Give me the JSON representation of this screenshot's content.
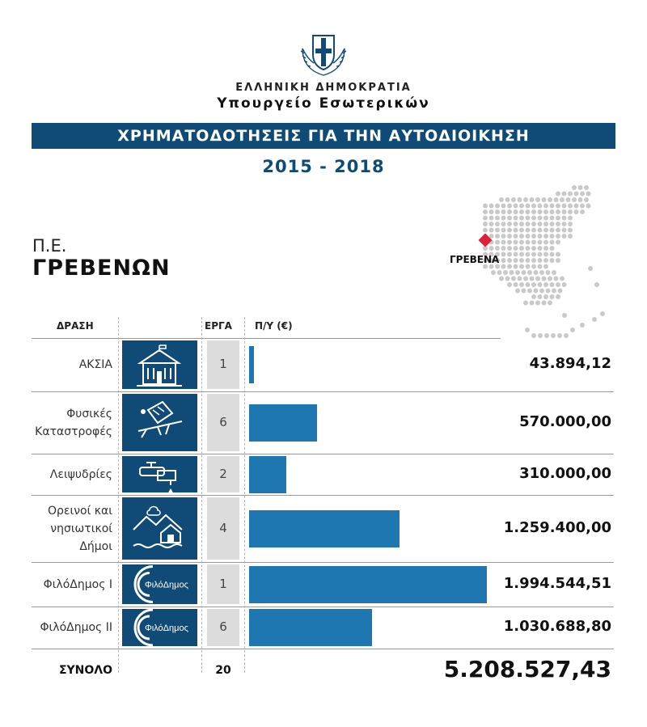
{
  "header": {
    "republic": "ΕΛΛΗΝΙΚΗ ΔΗΜΟΚΡΑΤΙΑ",
    "ministry": "Υπουργείο Εσωτερικών",
    "banner": "ΧΡΗΜΑΤΟΔΟΤΗΣΕΙΣ ΓΙΑ ΤΗΝ ΑΥΤΟΔΙΟΙΚΗΣΗ",
    "years": "2015 - 2018"
  },
  "region": {
    "prefix": "Π.Ε.",
    "name": "ΓΡΕΒΕΝΩΝ",
    "map_label": "ΓΡΕΒΕΝΑ"
  },
  "columns": {
    "action": "ΔΡΑΣΗ",
    "projects": "ΕΡΓΑ",
    "budget": "Π/Υ (€)"
  },
  "colors": {
    "primary": "#0f4b76",
    "bar": "#1e77b0",
    "project_box": "#dcdcdc",
    "marker": "#e0203a"
  },
  "icons": [
    "school-icon",
    "earthquake-house-icon",
    "faucet-icon",
    "mountain-island-house-icon",
    "filodimos-logo-icon",
    "filodimos-logo-icon"
  ],
  "logo_text": "ΦιλόΔημος",
  "chart_data": {
    "type": "bar",
    "orientation": "horizontal",
    "categories": [
      [
        "ΑΚΣΙΑ"
      ],
      [
        "Φυσικές",
        "Καταστροφές"
      ],
      [
        "Λειψυδρίες"
      ],
      [
        "Ορεινοί και",
        "νησιωτικοί",
        "Δήμοι"
      ],
      [
        "ΦιλόΔημος Ι"
      ],
      [
        "ΦιλόΔημος ΙΙ"
      ]
    ],
    "projects": [
      1,
      6,
      2,
      4,
      1,
      6
    ],
    "values": [
      43894.12,
      570000.0,
      310000.0,
      1259400.0,
      1994544.51,
      1030688.8
    ],
    "value_labels": [
      "43.894,12",
      "570.000,00",
      "310.000,00",
      "1.259.400,00",
      "1.994.544,51",
      "1.030.688,80"
    ],
    "xlim": [
      0,
      2000000
    ],
    "total": {
      "label": "ΣΥΝΟΛΟ",
      "projects": "20",
      "value": "5.208.527,43"
    }
  }
}
